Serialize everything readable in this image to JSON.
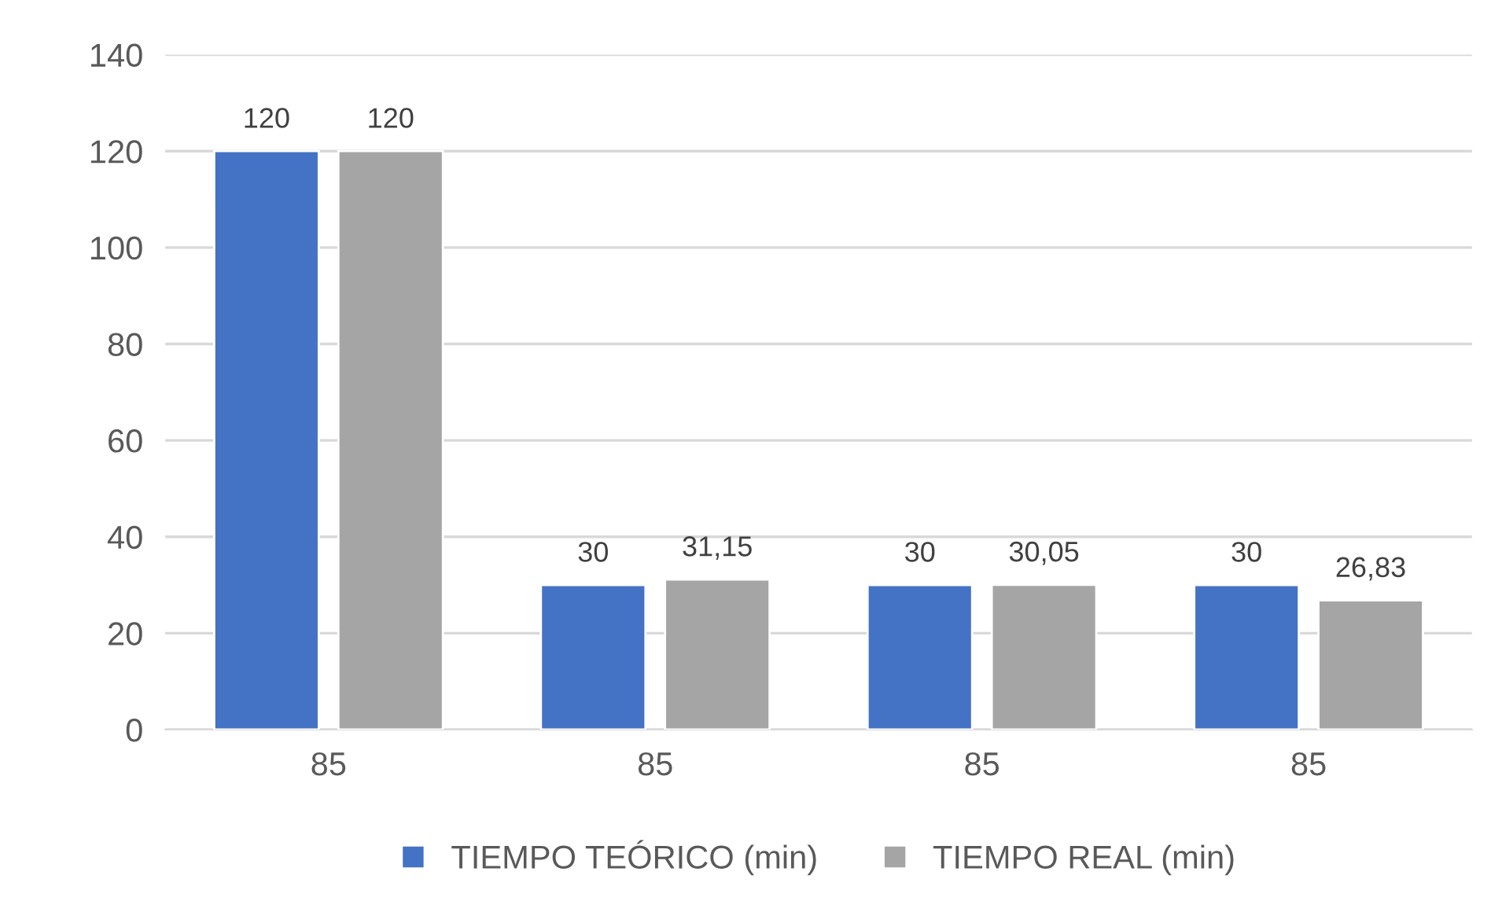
{
  "chart_data": {
    "type": "bar",
    "categories": [
      "85",
      "85",
      "85",
      "85"
    ],
    "series": [
      {
        "name": "TIEMPO TEÓRICO (min)",
        "color": "#4472c4",
        "values": [
          120,
          30,
          30,
          30
        ],
        "value_labels": [
          "120",
          "30",
          "30",
          "30"
        ]
      },
      {
        "name": "TIEMPO REAL (min)",
        "color": "#a5a5a5",
        "values": [
          120,
          31.15,
          30.05,
          26.83
        ],
        "value_labels": [
          "120",
          "31,15",
          "30,05",
          "26,83"
        ]
      }
    ],
    "ylim": [
      0,
      140
    ],
    "yticks": [
      0,
      20,
      40,
      60,
      80,
      100,
      120,
      140
    ],
    "grid": "y",
    "legend": "bottom"
  }
}
